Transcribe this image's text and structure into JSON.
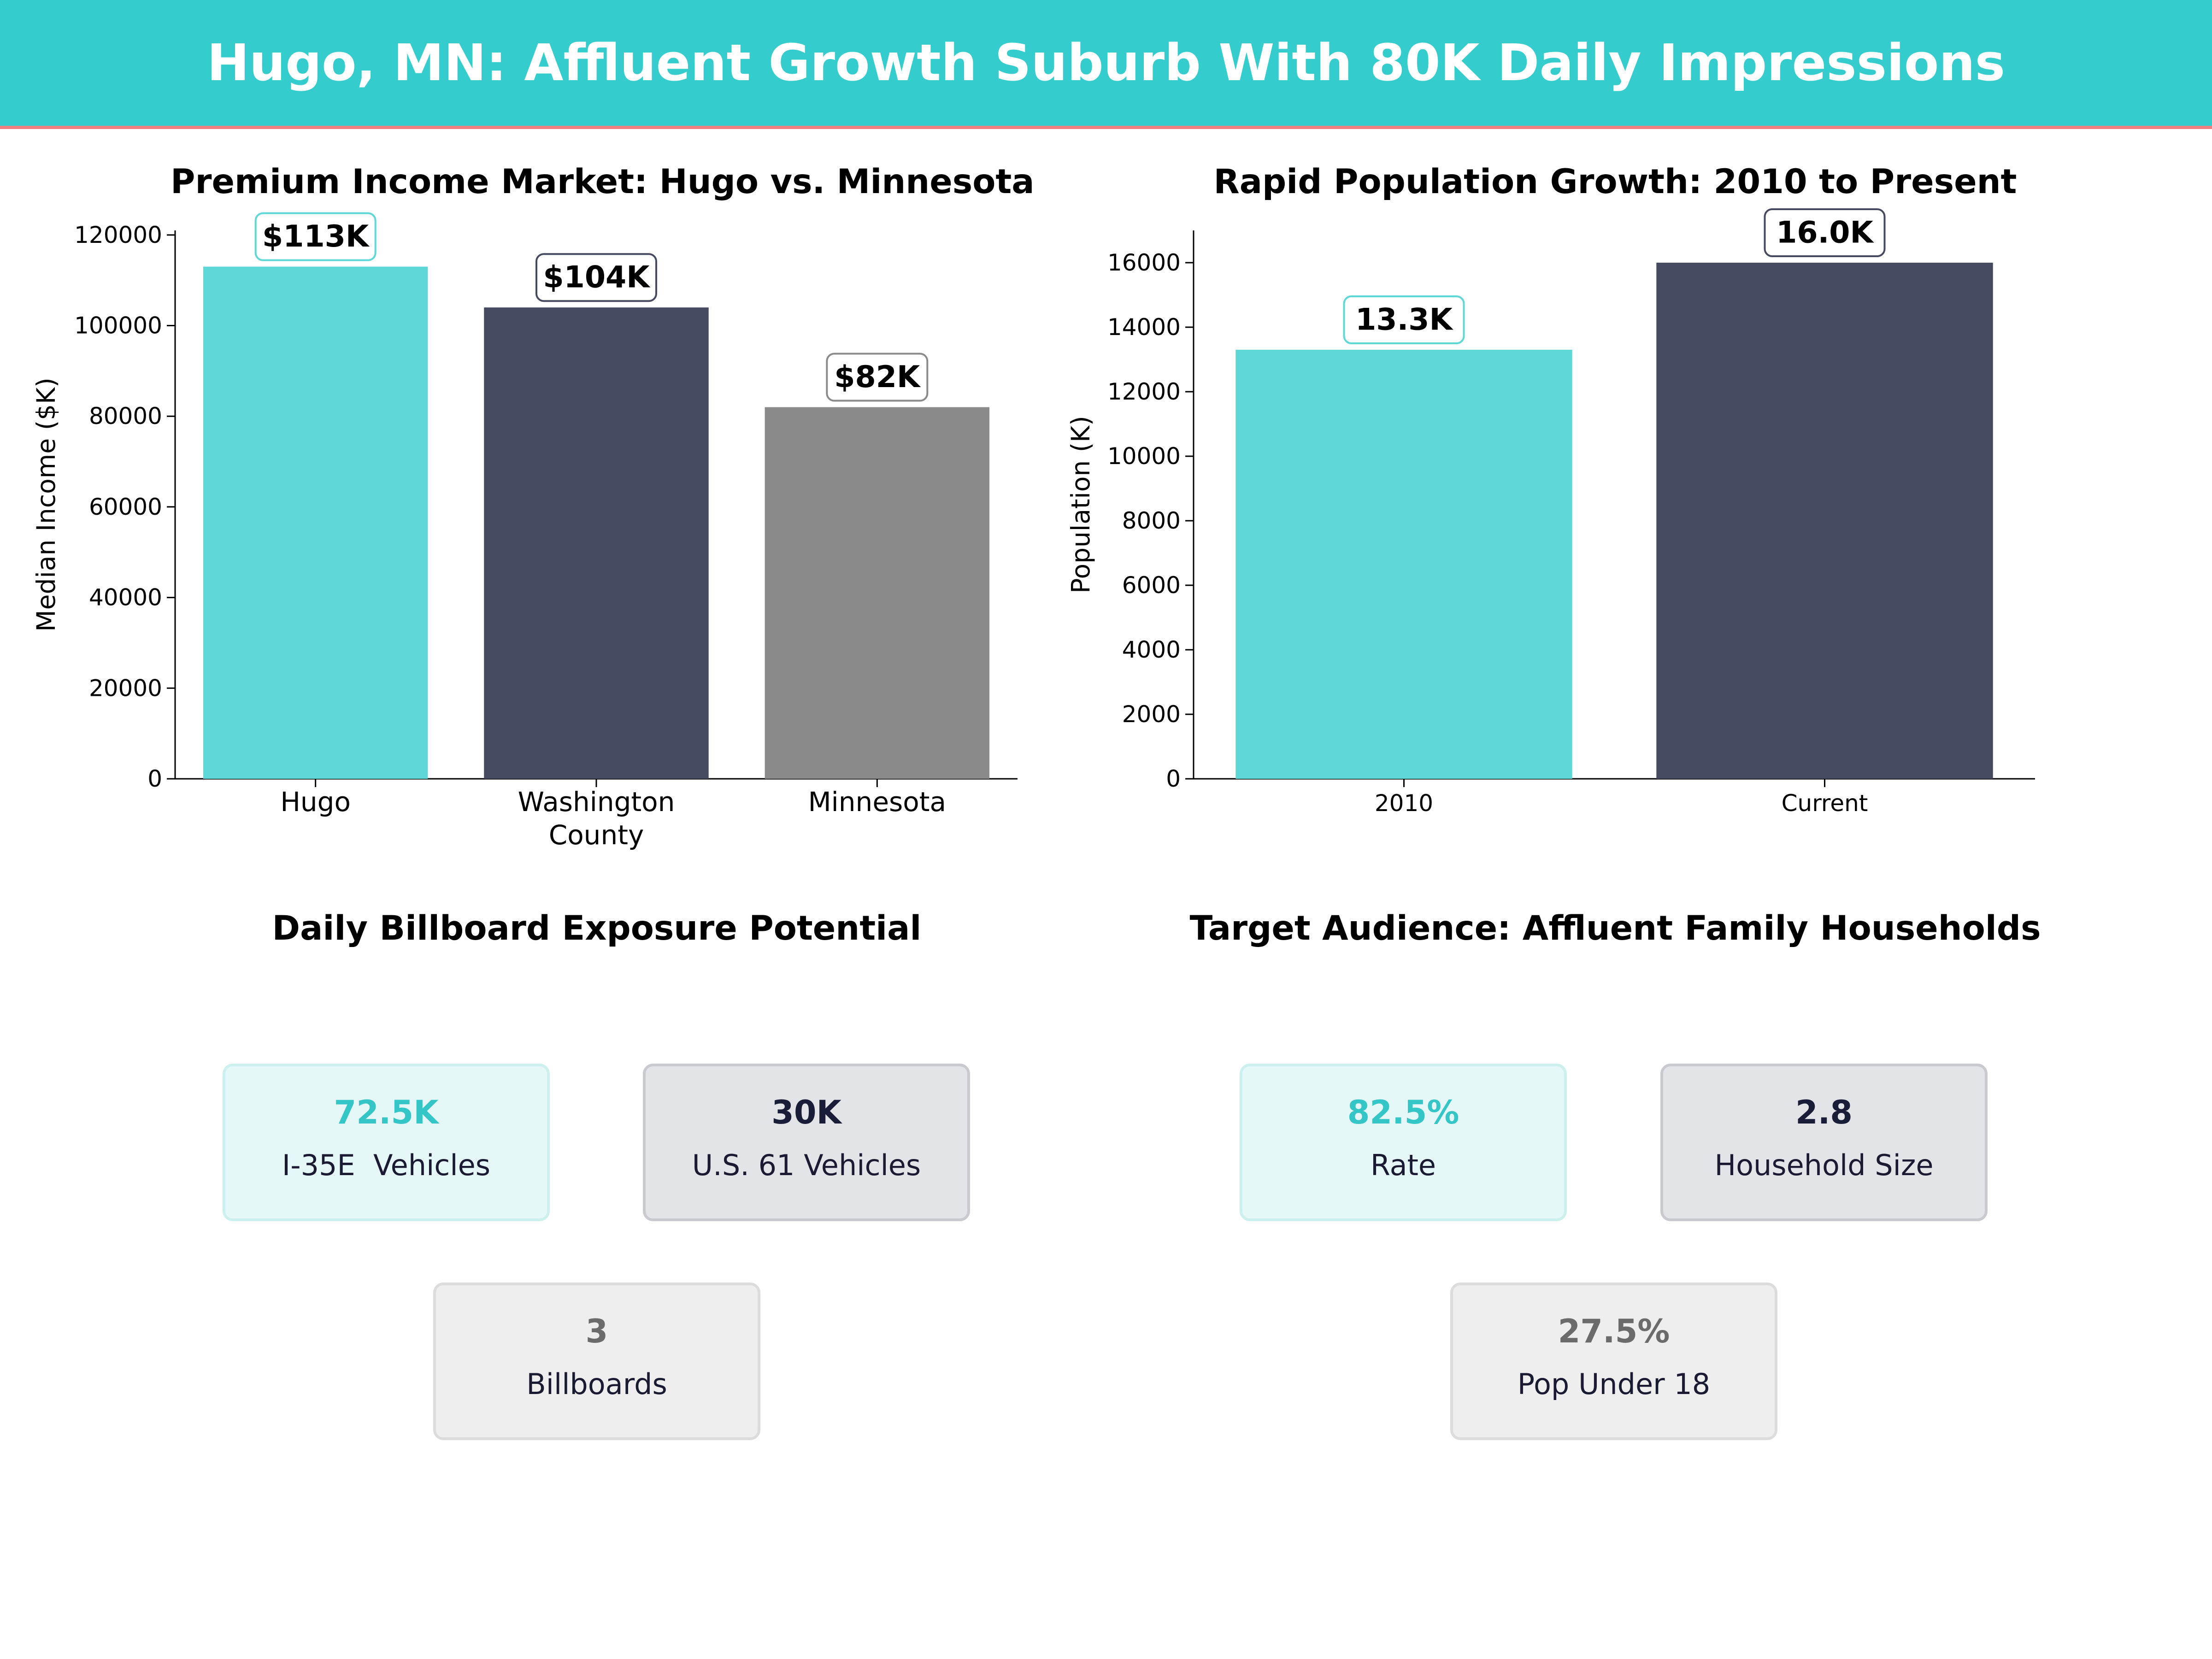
{
  "header": {
    "title": "Hugo, MN: Affluent Growth Suburb With 80K Daily Impressions",
    "background_color": "#34cccc",
    "accent_line_color": "#f08080"
  },
  "chart_data": [
    {
      "type": "bar",
      "title": "Premium Income Market: Hugo vs. Minnesota",
      "xlabel": "",
      "ylabel": "Median Income ($K)",
      "categories": [
        "Hugo",
        "Washington\nCounty",
        "Minnesota"
      ],
      "values": [
        113000,
        104000,
        82000
      ],
      "data_labels": [
        "$113K",
        "$104K",
        "$82K"
      ],
      "colors": [
        "#5dd8d6",
        "#454a60",
        "#8a8a8a"
      ],
      "label_box_borders": [
        "#5dd8d6",
        "#454a60",
        "#8a8a8a"
      ],
      "ylim": [
        0,
        121000
      ],
      "yticks": [
        0,
        20000,
        40000,
        60000,
        80000,
        100000,
        120000
      ],
      "grid": false
    },
    {
      "type": "bar",
      "title": "Rapid Population Growth: 2010 to Present",
      "xlabel": "",
      "ylabel": "Population (K)",
      "categories": [
        "2010",
        "Current"
      ],
      "values": [
        13300,
        16000
      ],
      "data_labels": [
        "13.3K",
        "16.0K"
      ],
      "colors": [
        "#5dd8d6",
        "#454a60"
      ],
      "label_box_borders": [
        "#5dd8d6",
        "#454a60"
      ],
      "ylim": [
        0,
        17000
      ],
      "yticks": [
        0,
        2000,
        4000,
        6000,
        8000,
        10000,
        12000,
        14000,
        16000
      ],
      "grid": false
    }
  ],
  "exposure": {
    "title": "Daily Billboard Exposure Potential",
    "cards": [
      {
        "value": "72.5K",
        "label": "I-35E  Vehicles",
        "style": "teal"
      },
      {
        "value": "30K",
        "label": "U.S. 61 Vehicles",
        "style": "navy"
      },
      {
        "value": "3",
        "label": "Billboards",
        "style": "grey"
      }
    ]
  },
  "audience": {
    "title": "Target Audience: Affluent Family Households",
    "cards": [
      {
        "value": "82.5%",
        "label": "Rate",
        "style": "teal"
      },
      {
        "value": "2.8",
        "label": "Household Size",
        "style": "navy"
      },
      {
        "value": "27.5%",
        "label": "Pop Under 18",
        "style": "grey"
      }
    ]
  }
}
